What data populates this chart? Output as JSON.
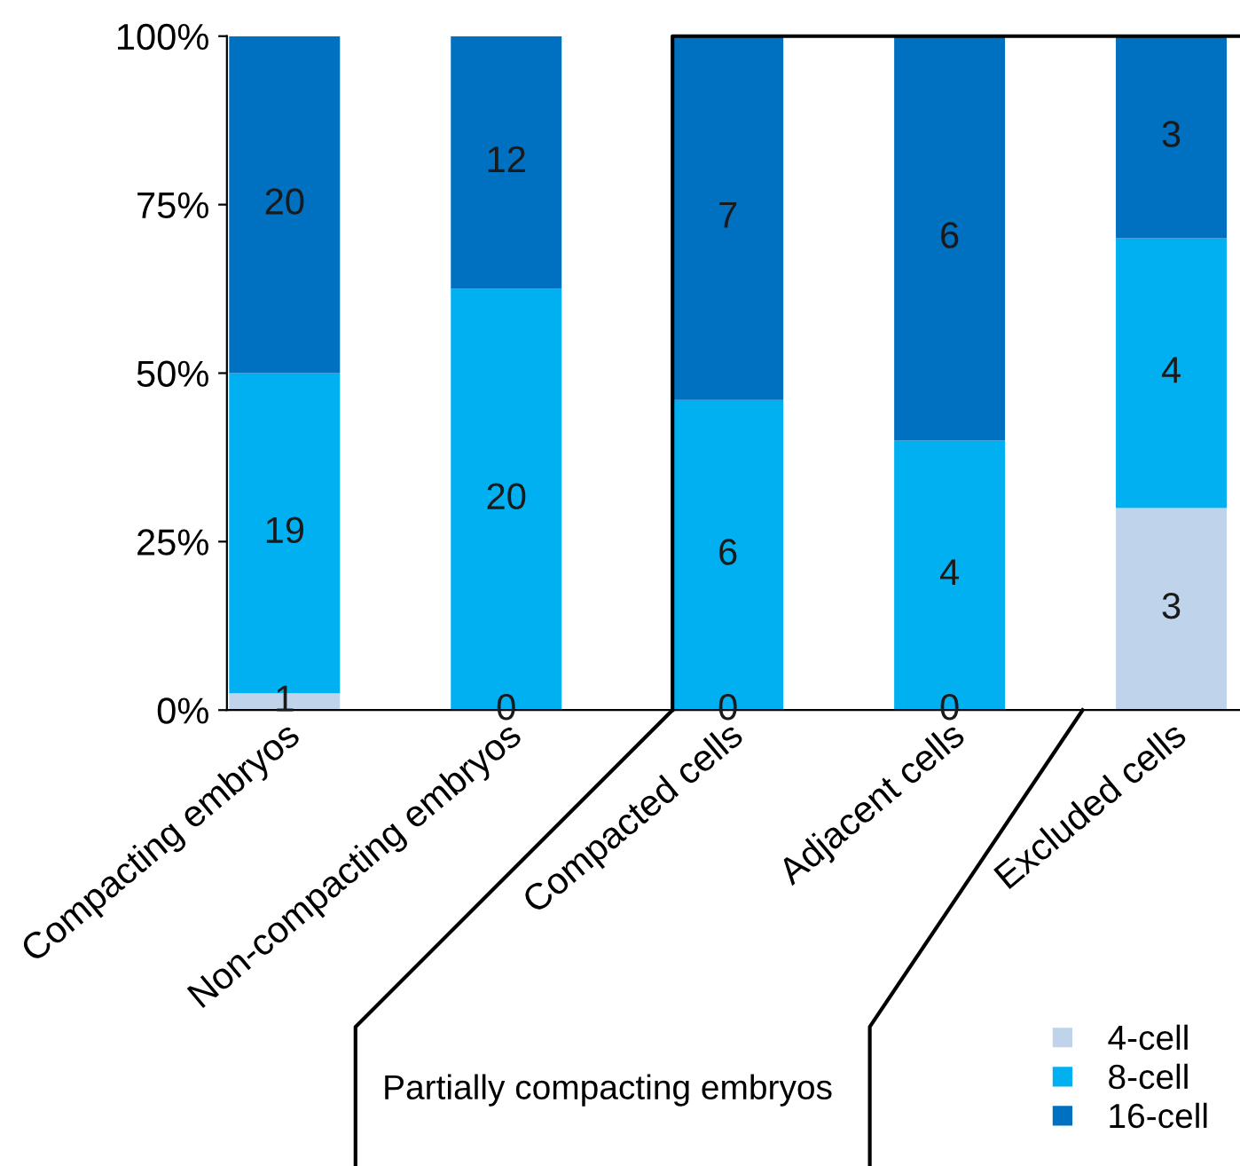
{
  "chart_data": {
    "type": "bar",
    "stacked": true,
    "categories": [
      "Compacting embryos",
      "Non-compacting embryos",
      "Compacted cells",
      "Adjacent cells",
      "Excluded cells"
    ],
    "series": [
      {
        "name": "4-cell",
        "color": "#bfd3ea",
        "values": [
          2.5,
          0,
          0,
          0,
          30
        ]
      },
      {
        "name": "8-cell",
        "color": "#00b0f0",
        "values": [
          47.5,
          62.5,
          46,
          40,
          40
        ]
      },
      {
        "name": "16-cell",
        "color": "#0070c0",
        "values": [
          50,
          37.5,
          54,
          60,
          30
        ]
      }
    ],
    "ylim": [
      0,
      100
    ],
    "yticks": [
      {
        "value": 0,
        "label": "0%"
      },
      {
        "value": 25,
        "label": "25%"
      },
      {
        "value": 50,
        "label": "50%"
      },
      {
        "value": 75,
        "label": "75%"
      },
      {
        "value": 100,
        "label": "100%"
      }
    ],
    "grid": false,
    "legend": "bottom right",
    "annotations": [
      "Partially compacting embryos",
      "1",
      "0",
      "0",
      "0",
      "3",
      "19",
      "20",
      "6",
      "4",
      "4",
      "20",
      "12",
      "7",
      "6",
      "3"
    ]
  }
}
